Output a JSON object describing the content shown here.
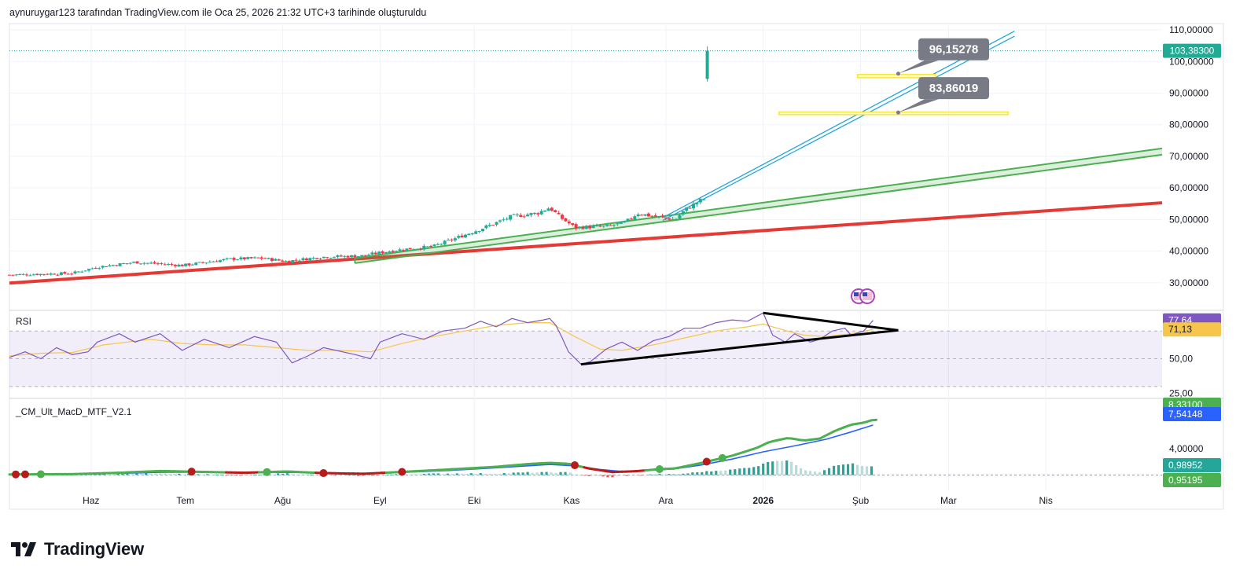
{
  "header": {
    "text": "aynuruygar123 tarafından TradingView.com ile Oca 25, 2026 21:32 UTC+3 tarihinde oluşturuldu"
  },
  "branding": {
    "logo_text": "TradingView",
    "logo_icon": "tradingview-logo-icon"
  },
  "colors": {
    "up": "#22ab94",
    "down": "#f23645",
    "rsi": "#7e57c2",
    "rsi_ma": "#f5c64b",
    "macd_fast": "#4caf50",
    "macd_slow": "#2962ff",
    "red_trend": "#e53935",
    "green_channel": "#4caf50",
    "blue_channel": "#26a6d9",
    "zone": "#f5e642",
    "callout": "#787b86"
  },
  "chart_data": [
    {
      "type": "candlestick",
      "panel": "price",
      "title": "",
      "y_range": [
        22,
        112
      ],
      "y_ticks": [
        "110,00000",
        "100,00000",
        "90,00000",
        "80,00000",
        "70,00000",
        "60,00000",
        "50,00000",
        "40,00000",
        "30,00000"
      ],
      "y_tick_values": [
        110,
        100,
        90,
        80,
        70,
        60,
        50,
        40,
        30
      ],
      "last_price": {
        "label": "103,38300",
        "value": 103.383
      },
      "x_labels": [
        "Haz",
        "Tem",
        "Ağu",
        "Eyl",
        "Eki",
        "Kas",
        "Ara",
        "2026",
        "Şub",
        "Mar",
        "Nis"
      ],
      "x_label_days": [
        26,
        56,
        87,
        118,
        148,
        179,
        209,
        240,
        271,
        299,
        330
      ],
      "bars_count": 203,
      "bar_day_start": 0,
      "bar_day_step": 1.1,
      "close_anchors": [
        [
          0,
          32.5
        ],
        [
          20,
          33
        ],
        [
          28,
          35
        ],
        [
          40,
          36.5
        ],
        [
          55,
          35.5
        ],
        [
          70,
          37.5
        ],
        [
          80,
          37.8
        ],
        [
          88,
          36.8
        ],
        [
          100,
          38.2
        ],
        [
          112,
          38.5
        ],
        [
          122,
          40.2
        ],
        [
          135,
          41.5
        ],
        [
          150,
          47
        ],
        [
          160,
          51
        ],
        [
          168,
          52
        ],
        [
          172,
          53.8
        ],
        [
          175,
          51
        ],
        [
          180,
          47.5
        ],
        [
          190,
          47.8
        ],
        [
          196,
          49
        ],
        [
          200,
          52
        ],
        [
          205,
          51
        ],
        [
          212,
          50
        ],
        [
          215,
          53
        ],
        [
          220,
          56
        ],
        [
          225,
          58
        ],
        [
          230,
          63
        ],
        [
          235,
          68
        ],
        [
          240,
          75
        ],
        [
          243,
          82
        ],
        [
          246,
          77
        ],
        [
          250,
          79
        ],
        [
          253,
          74
        ],
        [
          256,
          77
        ],
        [
          259,
          85
        ],
        [
          262,
          89
        ],
        [
          266,
          95
        ],
        [
          268,
          92
        ],
        [
          271,
          94
        ],
        [
          274,
          97
        ],
        [
          275,
          103.383
        ]
      ],
      "annotations": {
        "callouts": [
          {
            "label": "96,15278",
            "value": 96.15278
          },
          {
            "label": "83,86019",
            "value": 83.86019
          }
        ],
        "zones": [
          {
            "from_day": 270,
            "to_day": 295,
            "low": 94.9,
            "high": 95.9
          },
          {
            "from_day": 245,
            "to_day": 318,
            "low": 83.2,
            "high": 84.0
          }
        ],
        "red_trend": {
          "from": [
            0,
            29.9
          ],
          "to": [
            367,
            55.3
          ]
        },
        "green_channel": {
          "lower": [
            [
              110,
              36.2
            ],
            [
              367,
              70.5
            ]
          ],
          "upper": [
            [
              110,
              37.8
            ],
            [
              367,
              72.5
            ]
          ]
        },
        "blue_channel": [
          [
            [
              208,
              49.7
            ],
            [
              320,
              108
            ]
          ],
          [
            [
              208,
              50.6
            ],
            [
              320,
              109.6
            ]
          ]
        ]
      }
    },
    {
      "type": "line",
      "panel": "rsi",
      "title": "RSI",
      "y_range": [
        22,
        82
      ],
      "y_ticks": [
        "50,00",
        "25,00"
      ],
      "y_tick_values": [
        50,
        25
      ],
      "bands": {
        "upper": 70,
        "middle": 50,
        "lower": 30
      },
      "series": [
        {
          "name": "",
          "last_label": "77,64",
          "last_value": 77.64,
          "points": [
            [
              0,
              51
            ],
            [
              5,
              55
            ],
            [
              10,
              50
            ],
            [
              15,
              58
            ],
            [
              20,
              53
            ],
            [
              25,
              55
            ],
            [
              28,
              62
            ],
            [
              35,
              68
            ],
            [
              40,
              62
            ],
            [
              48,
              68
            ],
            [
              55,
              56
            ],
            [
              62,
              64
            ],
            [
              70,
              58
            ],
            [
              78,
              66
            ],
            [
              85,
              62
            ],
            [
              90,
              47
            ],
            [
              95,
              52
            ],
            [
              100,
              58
            ],
            [
              110,
              53
            ],
            [
              115,
              50
            ],
            [
              118,
              62
            ],
            [
              125,
              68
            ],
            [
              132,
              64
            ],
            [
              138,
              70
            ],
            [
              145,
              72
            ],
            [
              150,
              77
            ],
            [
              155,
              73
            ],
            [
              160,
              79
            ],
            [
              165,
              76
            ],
            [
              170,
              78
            ],
            [
              172,
              79
            ],
            [
              174,
              74
            ],
            [
              176,
              65
            ],
            [
              178,
              55
            ],
            [
              182,
              46
            ],
            [
              185,
              48
            ],
            [
              190,
              57
            ],
            [
              195,
              62
            ],
            [
              200,
              56
            ],
            [
              205,
              63
            ],
            [
              210,
              66
            ],
            [
              215,
              72
            ],
            [
              220,
              72
            ],
            [
              225,
              76
            ],
            [
              230,
              78
            ],
            [
              235,
              77
            ],
            [
              240,
              83
            ],
            [
              243,
              67
            ],
            [
              247,
              62
            ],
            [
              250,
              68
            ],
            [
              255,
              62
            ],
            [
              258,
              64
            ],
            [
              262,
              70
            ],
            [
              266,
              72
            ],
            [
              268,
              67
            ],
            [
              272,
              70
            ],
            [
              275,
              77.64
            ]
          ]
        },
        {
          "name": "",
          "last_label": "71,13",
          "last_value": 71.13,
          "points": [
            [
              0,
              52
            ],
            [
              10,
              54
            ],
            [
              20,
              54.5
            ],
            [
              30,
              60
            ],
            [
              45,
              64
            ],
            [
              55,
              61
            ],
            [
              65,
              60
            ],
            [
              75,
              60
            ],
            [
              85,
              58
            ],
            [
              95,
              56
            ],
            [
              105,
              56
            ],
            [
              115,
              55
            ],
            [
              125,
              61
            ],
            [
              135,
              66
            ],
            [
              145,
              70
            ],
            [
              155,
              74
            ],
            [
              165,
              76
            ],
            [
              172,
              76
            ],
            [
              180,
              66
            ],
            [
              188,
              57
            ],
            [
              195,
              56
            ],
            [
              205,
              60
            ],
            [
              215,
              65
            ],
            [
              225,
              70
            ],
            [
              235,
              73
            ],
            [
              240,
              75
            ],
            [
              246,
              71
            ],
            [
              253,
              67
            ],
            [
              260,
              66
            ],
            [
              268,
              68
            ],
            [
              275,
              71.13
            ]
          ]
        }
      ],
      "triangle": {
        "upper": [
          [
            240,
            83
          ],
          [
            283,
            70.5
          ]
        ],
        "lower": [
          [
            182,
            46
          ],
          [
            283,
            70.5
          ]
        ]
      }
    },
    {
      "type": "line",
      "panel": "macd",
      "title": "_CM_Ult_MacD_MTF_V2.1",
      "y_range": [
        -2.3,
        11.2
      ],
      "y_ticks": [
        "4,00000"
      ],
      "y_tick_values": [
        4
      ],
      "series": [
        {
          "name": "",
          "last_label": "8,33100",
          "last_value": 8.331,
          "points": [
            [
              0,
              0.1
            ],
            [
              20,
              0.15
            ],
            [
              35,
              0.35
            ],
            [
              48,
              0.62
            ],
            [
              60,
              0.5
            ],
            [
              75,
              0.35
            ],
            [
              88,
              0.55
            ],
            [
              100,
              0.3
            ],
            [
              113,
              0.2
            ],
            [
              128,
              0.55
            ],
            [
              140,
              0.85
            ],
            [
              155,
              1.25
            ],
            [
              165,
              1.65
            ],
            [
              172,
              1.85
            ],
            [
              178,
              1.7
            ],
            [
              185,
              0.95
            ],
            [
              192,
              0.45
            ],
            [
              200,
              0.6
            ],
            [
              207,
              0.9
            ],
            [
              212,
              1.0
            ],
            [
              220,
              1.8
            ],
            [
              230,
              2.9
            ],
            [
              238,
              4.1
            ],
            [
              242,
              5
            ],
            [
              248,
              5.6
            ],
            [
              253,
              5.2
            ],
            [
              258,
              5.5
            ],
            [
              263,
              6.7
            ],
            [
              268,
              7.6
            ],
            [
              272,
              7.9
            ],
            [
              275,
              8.331
            ]
          ]
        },
        {
          "name": "",
          "last_label": "7,54148",
          "last_value": 7.54148,
          "points": [
            [
              0,
              0.05
            ],
            [
              20,
              0.1
            ],
            [
              35,
              0.25
            ],
            [
              50,
              0.45
            ],
            [
              65,
              0.42
            ],
            [
              80,
              0.4
            ],
            [
              95,
              0.38
            ],
            [
              110,
              0.26
            ],
            [
              125,
              0.4
            ],
            [
              140,
              0.7
            ],
            [
              155,
              1.1
            ],
            [
              165,
              1.4
            ],
            [
              172,
              1.6
            ],
            [
              180,
              1.4
            ],
            [
              188,
              0.85
            ],
            [
              195,
              0.55
            ],
            [
              205,
              0.75
            ],
            [
              212,
              0.95
            ],
            [
              220,
              1.5
            ],
            [
              230,
              2.4
            ],
            [
              240,
              3.5
            ],
            [
              250,
              4.4
            ],
            [
              260,
              5.4
            ],
            [
              268,
              6.5
            ],
            [
              275,
              7.54148
            ]
          ]
        }
      ],
      "histogram_labels": [
        {
          "label": "0,98952",
          "value": 0.98952
        },
        {
          "label": "0,95195",
          "value": 0.95195
        }
      ]
    }
  ]
}
